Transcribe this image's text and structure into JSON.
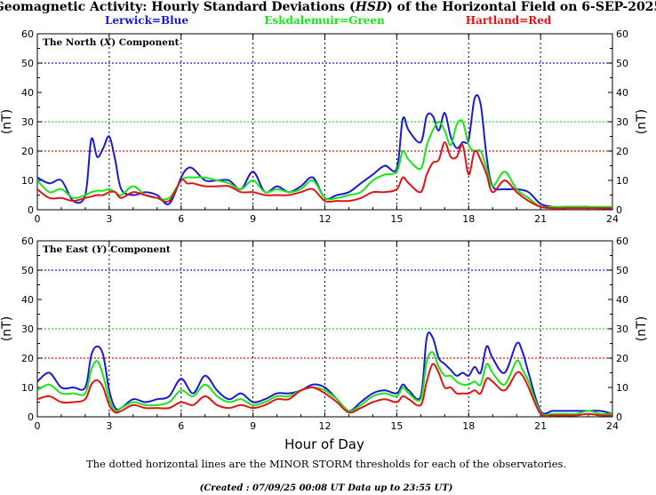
{
  "title_main": "Geomagnetic Activity: Hourly Standard Deviations (",
  "title_hsd": "HSD",
  "title_rest": ") of the Horizontal Field on 6-SEP-2025",
  "legend": [
    {
      "label": "Lerwick=Blue",
      "color": "#1a1ad6"
    },
    {
      "label": "Eskdalemuir=Green",
      "color": "#19e619"
    },
    {
      "label": "Hartland=Red",
      "color": "#e01414"
    }
  ],
  "xlabel": "Hour of Day",
  "ylabel": "(nT)",
  "footnote": "The dotted horizontal lines are the MINOR STORM thresholds for each of the observatories.",
  "created": "(Created : 07/09/25 00:08 UT  Data up to 23:55 UT)",
  "chart_data": [
    {
      "type": "line",
      "panel_title": "The North (X) Component",
      "xlim": [
        0,
        24
      ],
      "ylim": [
        0,
        60
      ],
      "xticks": [
        0,
        3,
        6,
        9,
        12,
        15,
        18,
        21,
        24
      ],
      "yticks": [
        0,
        10,
        20,
        30,
        40,
        50,
        60
      ],
      "thresholds": [
        {
          "value": 50,
          "color": "#1a1ad6"
        },
        {
          "value": 30,
          "color": "#19e619"
        },
        {
          "value": 20,
          "color": "#e01414"
        }
      ],
      "x": [
        0,
        0.5,
        1,
        1.5,
        2,
        2.25,
        2.5,
        2.75,
        3,
        3.25,
        3.5,
        4,
        4.5,
        5,
        5.5,
        6,
        6.25,
        6.5,
        7,
        7.5,
        8,
        8.5,
        9,
        9.5,
        10,
        10.5,
        11,
        11.5,
        12,
        12.5,
        13,
        13.5,
        14,
        14.5,
        15,
        15.25,
        15.5,
        16,
        16.25,
        16.5,
        16.75,
        17,
        17.25,
        17.5,
        17.75,
        18,
        18.25,
        18.5,
        18.75,
        19,
        19.5,
        20,
        20.5,
        21,
        21.5,
        22,
        22.5,
        23,
        23.5,
        24
      ],
      "series": [
        {
          "name": "Lerwick",
          "color": "#1a1ad6",
          "values": [
            11,
            9,
            10,
            3,
            5,
            24,
            18,
            21,
            25,
            17,
            7,
            5,
            6,
            5,
            2,
            11,
            14,
            14,
            10,
            10,
            10,
            7,
            13,
            6,
            8,
            6,
            8,
            11,
            4,
            5,
            6,
            9,
            12,
            15,
            14,
            31,
            27,
            23,
            32,
            32,
            27,
            33,
            25,
            21,
            23,
            24,
            38,
            36,
            18,
            8,
            7,
            7,
            6,
            2,
            1,
            1,
            1,
            1,
            0.5,
            0.5
          ]
        },
        {
          "name": "Eskdalemuir",
          "color": "#19e619",
          "values": [
            10,
            6,
            7,
            4,
            5,
            6,
            6.5,
            6.5,
            7,
            6,
            5,
            8,
            5,
            4,
            4,
            10,
            11,
            11,
            11,
            10,
            9,
            7,
            10,
            6,
            7,
            6,
            7,
            10,
            4,
            4,
            5,
            6,
            10,
            12,
            13,
            20,
            17,
            14,
            22,
            27,
            30,
            27,
            22,
            29,
            30,
            22,
            20,
            20,
            14,
            8,
            13,
            7,
            4,
            1,
            1,
            1,
            1,
            1,
            1,
            1
          ]
        },
        {
          "name": "Hartland",
          "color": "#e01414",
          "values": [
            7,
            4,
            4,
            3,
            4,
            4.5,
            5,
            5,
            6,
            6,
            4,
            6,
            5,
            4,
            3,
            10,
            9,
            9,
            8,
            8,
            8,
            6,
            6,
            5,
            5,
            5,
            6,
            7,
            3,
            3,
            3,
            4,
            6,
            6,
            7,
            11,
            9,
            6,
            12,
            16,
            17,
            23,
            18,
            18,
            22,
            12,
            20,
            17,
            12,
            6,
            10,
            6,
            3,
            1,
            0.5,
            0.5,
            0.5,
            0.5,
            0.5,
            0.5
          ]
        }
      ]
    },
    {
      "type": "line",
      "panel_title": "The East (Y) Component",
      "xlim": [
        0,
        24
      ],
      "ylim": [
        0,
        60
      ],
      "xticks": [
        0,
        3,
        6,
        9,
        12,
        15,
        18,
        21,
        24
      ],
      "yticks": [
        0,
        10,
        20,
        30,
        40,
        50,
        60
      ],
      "thresholds": [
        {
          "value": 50,
          "color": "#1a1ad6"
        },
        {
          "value": 30,
          "color": "#19e619"
        },
        {
          "value": 20,
          "color": "#e01414"
        }
      ],
      "x": [
        0,
        0.5,
        1,
        1.5,
        2,
        2.25,
        2.5,
        2.75,
        3,
        3.25,
        3.5,
        4,
        4.5,
        5,
        5.5,
        6,
        6.5,
        7,
        7.5,
        8,
        8.5,
        9,
        9.5,
        10,
        10.5,
        11,
        11.5,
        12,
        12.5,
        13,
        13.5,
        14,
        14.5,
        15,
        15.25,
        15.5,
        16,
        16.25,
        16.5,
        16.75,
        17,
        17.25,
        17.5,
        17.75,
        18,
        18.25,
        18.5,
        18.75,
        19,
        19.5,
        20,
        20.25,
        20.5,
        21,
        21.5,
        22,
        22.5,
        23,
        23.5,
        24
      ],
      "series": [
        {
          "name": "Lerwick",
          "color": "#1a1ad6",
          "values": [
            12,
            15,
            10,
            10,
            10,
            21,
            24,
            21,
            9,
            3,
            3,
            6,
            5,
            6,
            7,
            13,
            8,
            14,
            9,
            6,
            8,
            5,
            6,
            8,
            8,
            9,
            11,
            10,
            6,
            2,
            5,
            8,
            9,
            8,
            11,
            9,
            7,
            27,
            27,
            20,
            18,
            16,
            14,
            15,
            14,
            17,
            15,
            24,
            20,
            15,
            25,
            22,
            15,
            2,
            2,
            2,
            2,
            2,
            2,
            1
          ]
        },
        {
          "name": "Eskdalemuir",
          "color": "#19e619",
          "values": [
            9,
            11,
            8,
            8,
            8,
            16,
            19,
            14,
            6,
            2,
            3,
            5,
            4,
            4,
            5,
            9,
            7,
            11,
            7,
            5,
            6,
            4,
            5,
            7,
            7,
            9,
            10,
            9,
            6,
            2,
            4,
            7,
            8,
            7,
            10,
            8,
            6,
            19,
            22,
            17,
            14,
            14,
            12,
            11,
            11,
            12,
            11,
            18,
            15,
            11,
            19,
            16,
            12,
            1.5,
            1,
            1,
            1,
            2,
            1,
            1
          ]
        },
        {
          "name": "Hartland",
          "color": "#e01414",
          "values": [
            6,
            7,
            5,
            5,
            6,
            11,
            12.5,
            10,
            4,
            1.5,
            2,
            4,
            3,
            3,
            3,
            5,
            4,
            7,
            4,
            3,
            4,
            3,
            4,
            6,
            6,
            9,
            10,
            8,
            5,
            1.5,
            3,
            5,
            6,
            5,
            7,
            6,
            4,
            12,
            18,
            15,
            10,
            10,
            8,
            8,
            8,
            9,
            8,
            13,
            12,
            9,
            15,
            14,
            10,
            1,
            0.5,
            0.5,
            0.5,
            1,
            0.5,
            0.5
          ]
        }
      ]
    }
  ]
}
